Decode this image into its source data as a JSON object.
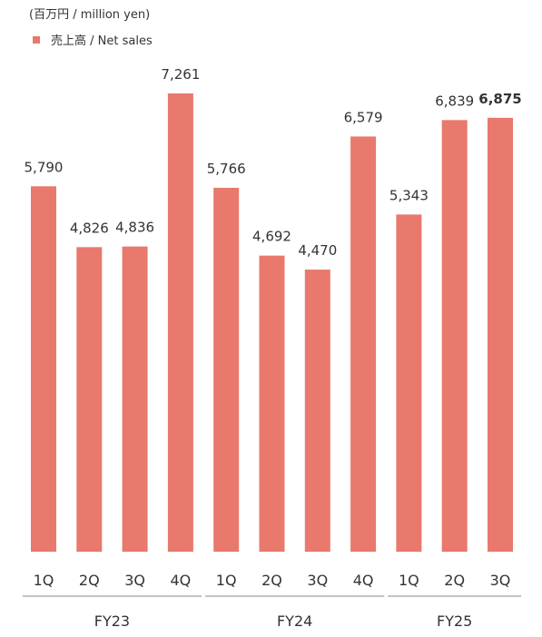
{
  "unit_label": "(百万円 / million yen)",
  "legend": {
    "label": "売上高 / Net sales"
  },
  "colors": {
    "bar": "#e8796c",
    "axis": "#888888",
    "text": "#333333"
  },
  "chart_data": {
    "type": "bar",
    "title": "",
    "ylabel": "",
    "xlabel": "",
    "ylim": [
      0,
      7261
    ],
    "grid": false,
    "legend_position": "top-left",
    "series": [
      {
        "name": "売上高 / Net sales",
        "values": [
          5790,
          4826,
          4836,
          7261,
          5766,
          4692,
          4470,
          6579,
          5343,
          6839,
          6875
        ]
      }
    ],
    "categories": [
      "1Q",
      "2Q",
      "3Q",
      "4Q",
      "1Q",
      "2Q",
      "3Q",
      "4Q",
      "1Q",
      "2Q",
      "3Q"
    ],
    "value_labels": [
      "5,790",
      "4,826",
      "4,836",
      "7,261",
      "5,766",
      "4,692",
      "4,470",
      "6,579",
      "5,343",
      "6,839",
      "6,875"
    ],
    "highlight_index": 10,
    "groups": [
      {
        "label": "FY23",
        "count": 4
      },
      {
        "label": "FY24",
        "count": 4
      },
      {
        "label": "FY25",
        "count": 3
      }
    ]
  }
}
